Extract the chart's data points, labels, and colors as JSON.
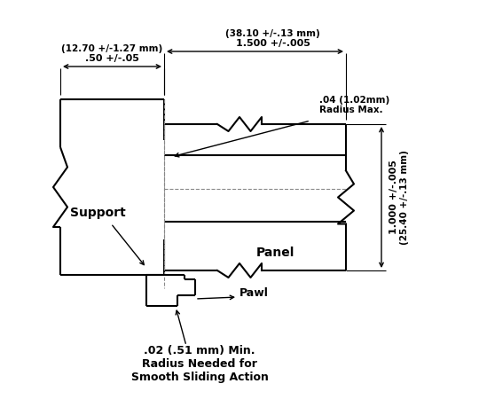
{
  "bg_color": "#ffffff",
  "line_color": "#000000",
  "text_color": "#000000",
  "figsize": [
    5.4,
    4.68
  ],
  "dpi": 100,
  "annotations": {
    "dim_top_left_l1": ".50 +/-.05",
    "dim_top_left_l2": "(12.70 +/-1.27 mm)",
    "dim_top_mid_l1": "1.500 +/-.005",
    "dim_top_mid_l2": "(38.10 +/-.13 mm)",
    "dim_radius_l1": ".04 (1.02mm)",
    "dim_radius_l2": "Radius Max.",
    "dim_right_l1": "1.000 +/-.005",
    "dim_right_l2": "(25.40 +/-.13 mm)",
    "label_support": "Support",
    "label_panel": "Panel",
    "label_pawl": "Pawl",
    "label_bottom_l1": ".02 (.51 mm) Min.",
    "label_bottom_l2": "Radius Needed for",
    "label_bottom_l3": "Smooth Sliding Action"
  }
}
